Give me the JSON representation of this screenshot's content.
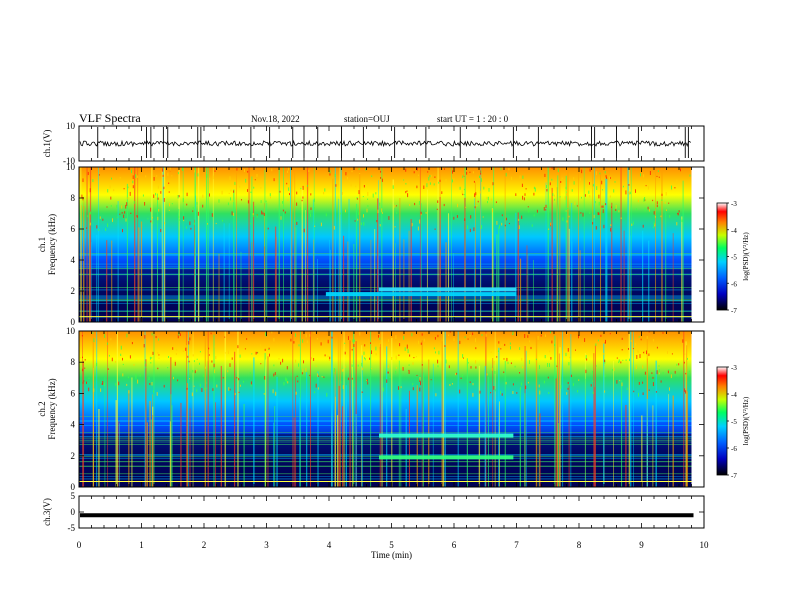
{
  "header": {
    "title": "VLF Spectra",
    "date": "Nov.18, 2022",
    "station": "station=OUJ",
    "start_ut": "start  UT =   1 : 20 : 0"
  },
  "chart_data": [
    {
      "type": "line",
      "name": "ch1-waveform",
      "ylabel": "ch.1(V)",
      "ylim": [
        -10,
        10
      ],
      "yticks": [
        "10",
        "-10"
      ],
      "trace_level": 0,
      "spike_times_min": [
        0.3,
        1.08,
        1.15,
        1.35,
        1.42,
        1.9,
        1.95,
        2.75,
        3.05,
        3.42,
        3.6,
        3.82,
        4.2,
        4.55,
        5.05,
        5.55,
        6.1,
        6.95,
        7.35,
        8.2,
        8.25,
        8.6,
        8.95,
        9.7,
        9.75
      ]
    },
    {
      "type": "heatmap",
      "name": "ch1-spectrogram",
      "ylabel": "ch.1\nFrequency  (kHz)",
      "ylim": [
        0,
        10
      ],
      "yticks": [
        "0",
        "2",
        "4",
        "6",
        "8",
        "10"
      ],
      "colorbar": {
        "label": "log(PSD)(V²/Hz)",
        "range": [
          -7,
          -3
        ],
        "ticks": [
          "-3",
          "-4",
          "-5",
          "-6",
          "-7"
        ]
      },
      "features": [
        {
          "label": "band",
          "t_start": 3.95,
          "t_end": 7.0,
          "freq_khz": 1.8,
          "log_psd": -4.8
        },
        {
          "label": "band",
          "t_start": 4.8,
          "t_end": 7.0,
          "freq_khz": 2.1,
          "log_psd": -4.8
        }
      ]
    },
    {
      "type": "heatmap",
      "name": "ch2-spectrogram",
      "ylabel": "ch.2\nFrequency  (kHz)",
      "ylim": [
        0,
        10
      ],
      "yticks": [
        "0",
        "2",
        "4",
        "6",
        "8",
        "10"
      ],
      "colorbar": {
        "label": "log(PSD)(V²/Hz)",
        "range": [
          -7,
          -3
        ],
        "ticks": [
          "-3",
          "-4",
          "-5",
          "-6",
          "-7"
        ]
      },
      "features": [
        {
          "label": "band",
          "t_start": 4.8,
          "t_end": 6.95,
          "freq_khz": 3.3,
          "log_psd": -4.8
        },
        {
          "label": "band",
          "t_start": 4.8,
          "t_end": 6.95,
          "freq_khz": 1.9,
          "log_psd": -4.8
        }
      ]
    },
    {
      "type": "line",
      "name": "ch3-trace",
      "ylabel": "ch.3(V)",
      "ylim": [
        -5,
        5
      ],
      "yticks": [
        "5",
        "0",
        "-5"
      ],
      "trace_level": -1
    }
  ],
  "xaxis": {
    "label": "Time  (min)",
    "xlim": [
      0,
      10
    ],
    "ticks": [
      "0",
      "1",
      "2",
      "3",
      "4",
      "5",
      "6",
      "7",
      "8",
      "9",
      "10"
    ],
    "data_end": 9.8
  },
  "colors": {
    "background": "#00147a",
    "low": "#000050",
    "mid": "#00c8ff",
    "high": "#ffff00",
    "peak": "#ff0000"
  }
}
